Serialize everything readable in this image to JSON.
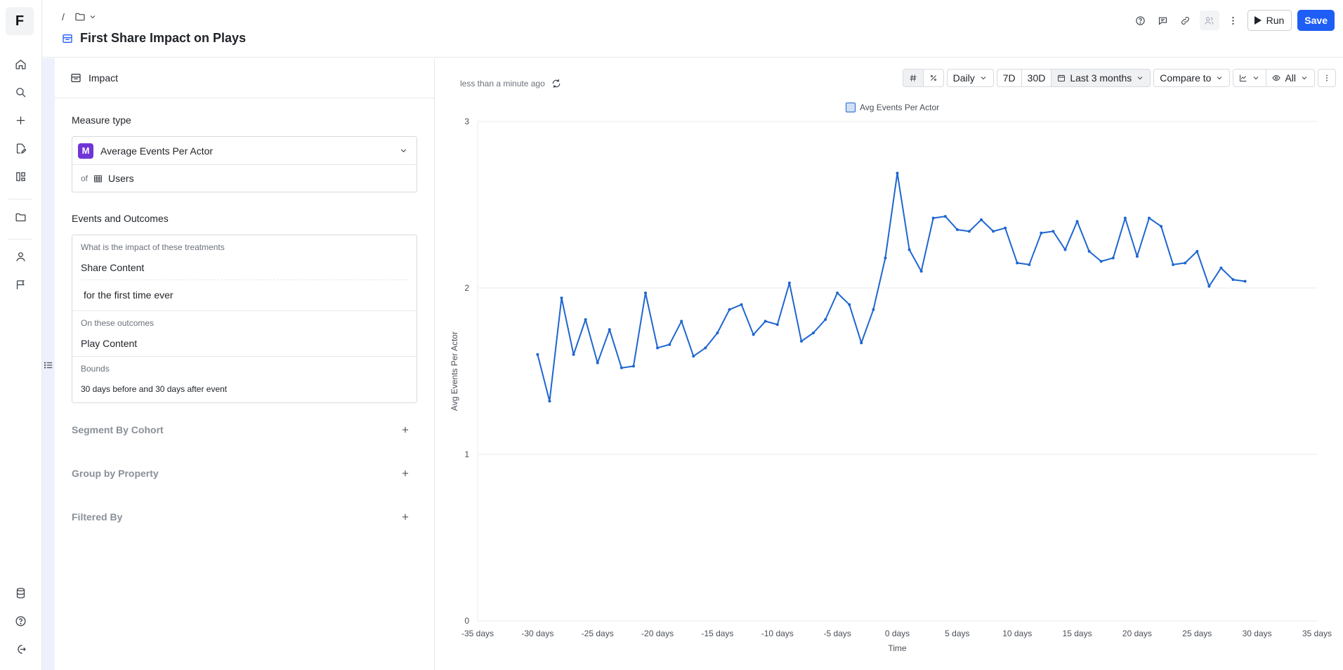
{
  "nav": {
    "logo": "F",
    "items": [
      {
        "name": "home-icon"
      },
      {
        "name": "search-icon"
      },
      {
        "name": "plus-icon"
      },
      {
        "name": "edit-document-icon"
      },
      {
        "name": "experiments-icon"
      },
      {
        "name": "folder-icon"
      },
      {
        "name": "user-icon"
      },
      {
        "name": "flag-icon"
      }
    ],
    "bottom_items": [
      {
        "name": "database-icon"
      },
      {
        "name": "help-icon"
      },
      {
        "name": "logout-icon"
      }
    ]
  },
  "header": {
    "breadcrumb_separator": "/",
    "title": "First Share Impact on Plays",
    "run_label": "Run",
    "save_label": "Save"
  },
  "panel": {
    "header_label": "Impact",
    "measure_type": {
      "title": "Measure type",
      "badge": "M",
      "value": "Average Events Per Actor",
      "of_label": "of",
      "entity": "Users"
    },
    "events_outcomes": {
      "title": "Events and Outcomes",
      "treatment_question": "What is the impact of these treatments",
      "treatment_event": "Share Content",
      "treatment_filter": "for the first time ever",
      "outcomes_label": "On these outcomes",
      "outcome_event": "Play Content",
      "bounds_label": "Bounds",
      "bounds_value": "30 days before and 30 days after event"
    },
    "sections": [
      {
        "label": "Segment By Cohort"
      },
      {
        "label": "Group by Property"
      },
      {
        "label": "Filtered By"
      }
    ]
  },
  "chart_panel": {
    "updated": "less than a minute ago",
    "toolbar": {
      "granularity": "Daily",
      "range_7d": "7D",
      "range_30d": "30D",
      "date_range": "Last 3 months",
      "compare": "Compare to",
      "visibility": "All"
    },
    "accent_color": "#1e66d0"
  },
  "chart_data": {
    "type": "line",
    "title": "",
    "xlabel": "Time",
    "ylabel": "Avg Events Per Actor",
    "xlim": [
      -35,
      35
    ],
    "ylim": [
      0,
      3
    ],
    "x_tick_values": [
      -35,
      -30,
      -25,
      -20,
      -15,
      -10,
      -5,
      0,
      5,
      10,
      15,
      20,
      25,
      30,
      35
    ],
    "x_tick_labels": [
      "-35 days",
      "-30 days",
      "-25 days",
      "-20 days",
      "-15 days",
      "-10 days",
      "-5 days",
      "0 days",
      "5 days",
      "10 days",
      "15 days",
      "20 days",
      "25 days",
      "30 days",
      "35 days"
    ],
    "y_ticks": [
      0,
      1,
      2,
      3
    ],
    "grid": true,
    "legend": "top-center",
    "series": [
      {
        "name": "Avg Events Per Actor",
        "color": "#1e66d0",
        "x": [
          -30,
          -29,
          -28,
          -27,
          -26,
          -25,
          -24,
          -23,
          -22,
          -21,
          -20,
          -19,
          -18,
          -17,
          -16,
          -15,
          -14,
          -13,
          -12,
          -11,
          -10,
          -9,
          -8,
          -7,
          -6,
          -5,
          -4,
          -3,
          -2,
          -1,
          0,
          1,
          2,
          3,
          4,
          5,
          6,
          7,
          8,
          9,
          10,
          11,
          12,
          13,
          14,
          15,
          16,
          17,
          18,
          19,
          20,
          21,
          22,
          23,
          24,
          25,
          26,
          27,
          28,
          29
        ],
        "y": [
          1.6,
          1.32,
          1.94,
          1.6,
          1.81,
          1.55,
          1.75,
          1.52,
          1.53,
          1.97,
          1.64,
          1.66,
          1.8,
          1.59,
          1.64,
          1.73,
          1.87,
          1.9,
          1.72,
          1.8,
          1.78,
          2.03,
          1.68,
          1.73,
          1.81,
          1.97,
          1.9,
          1.67,
          1.87,
          2.18,
          2.69,
          2.23,
          2.1,
          2.42,
          2.43,
          2.35,
          2.34,
          2.41,
          2.34,
          2.36,
          2.15,
          2.14,
          2.33,
          2.34,
          2.23,
          2.4,
          2.22,
          2.16,
          2.18,
          2.42,
          2.19,
          2.42,
          2.37,
          2.14,
          2.15,
          2.22,
          2.01,
          2.12,
          2.05,
          2.04
        ]
      }
    ]
  }
}
